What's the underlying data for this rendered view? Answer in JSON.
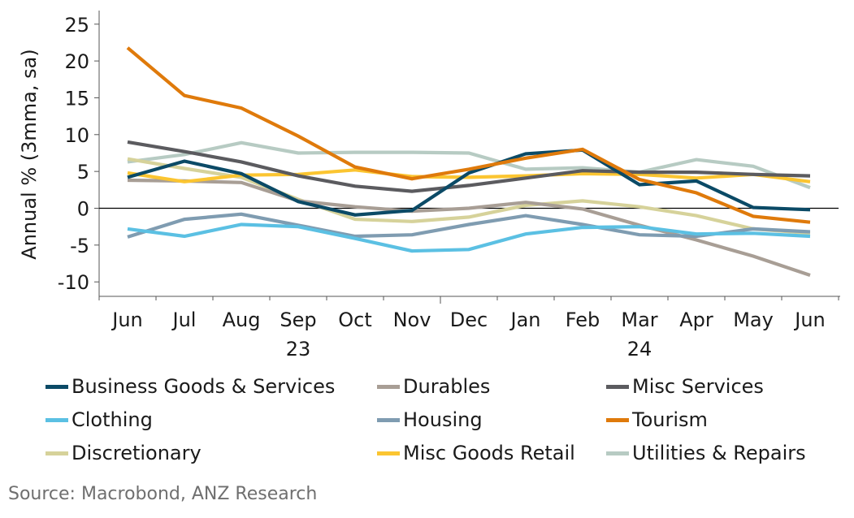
{
  "chart_data": {
    "type": "line",
    "title": "",
    "xlabel": "",
    "ylabel": "Annual % (3mma, sa)",
    "ylim": [
      -12,
      27
    ],
    "yticks": [
      25,
      20,
      15,
      10,
      5,
      0,
      -5,
      -10
    ],
    "grid": false,
    "legend_position": "bottom",
    "categories": [
      "Jun",
      "Jul",
      "Aug",
      "Sep",
      "Oct",
      "Nov",
      "Dec",
      "Jan",
      "Feb",
      "Mar",
      "Apr",
      "May",
      "Jun"
    ],
    "year_labels": [
      {
        "label": "23",
        "under_category_index": 3
      },
      {
        "label": "24",
        "under_category_index": 9
      }
    ],
    "series": [
      {
        "name": "Business Goods & Services",
        "color": "#0b4a66",
        "values": [
          4.2,
          6.4,
          4.7,
          0.9,
          -0.9,
          -0.3,
          4.8,
          7.4,
          7.9,
          3.2,
          3.7,
          0.1,
          -0.2
        ]
      },
      {
        "name": "Durables",
        "color": "#a89e95",
        "values": [
          3.8,
          3.7,
          3.5,
          1.0,
          0.2,
          -0.4,
          0.0,
          0.8,
          -0.1,
          -2.3,
          -4.3,
          -6.5,
          -9.1
        ]
      },
      {
        "name": "Misc Services",
        "color": "#5b5b5f",
        "values": [
          9.0,
          7.7,
          6.3,
          4.4,
          3.0,
          2.3,
          3.1,
          4.1,
          5.1,
          4.9,
          4.9,
          4.6,
          4.4
        ]
      },
      {
        "name": "Clothing",
        "color": "#5bc0e3",
        "values": [
          -2.8,
          -3.8,
          -2.2,
          -2.5,
          -4.1,
          -5.8,
          -5.6,
          -3.5,
          -2.6,
          -2.5,
          -3.5,
          -3.4,
          -3.8
        ]
      },
      {
        "name": "Housing",
        "color": "#7f9cb1",
        "values": [
          -3.9,
          -1.5,
          -0.8,
          -2.3,
          -3.8,
          -3.6,
          -2.2,
          -1.0,
          -2.2,
          -3.6,
          -3.8,
          -2.8,
          -3.2
        ]
      },
      {
        "name": "Tourism",
        "color": "#df7a0b",
        "values": [
          21.8,
          15.3,
          13.6,
          9.8,
          5.6,
          4.0,
          5.3,
          6.8,
          8.0,
          3.9,
          2.1,
          -1.1,
          -1.9
        ]
      },
      {
        "name": "Discretionary",
        "color": "#d6d29a",
        "values": [
          6.7,
          5.4,
          4.2,
          1.2,
          -1.5,
          -1.8,
          -1.2,
          0.4,
          1.0,
          0.2,
          -1.0,
          -2.8,
          -3.4
        ]
      },
      {
        "name": "Misc Goods Retail",
        "color": "#fbc531",
        "values": [
          4.8,
          3.6,
          4.5,
          4.6,
          5.2,
          4.3,
          4.2,
          4.4,
          4.7,
          4.6,
          4.1,
          4.6,
          3.6
        ]
      },
      {
        "name": "Utilities & Repairs",
        "color": "#b7cbc3",
        "values": [
          6.3,
          7.3,
          8.9,
          7.5,
          7.6,
          7.6,
          7.5,
          5.3,
          5.5,
          4.9,
          6.6,
          5.7,
          2.8
        ]
      }
    ],
    "legend_order": [
      "Business Goods & Services",
      "Durables",
      "Misc Services",
      "Clothing",
      "Housing",
      "Tourism",
      "Discretionary",
      "Misc Goods Retail",
      "Utilities & Repairs"
    ],
    "source": "Source: Macrobond, ANZ Research"
  }
}
